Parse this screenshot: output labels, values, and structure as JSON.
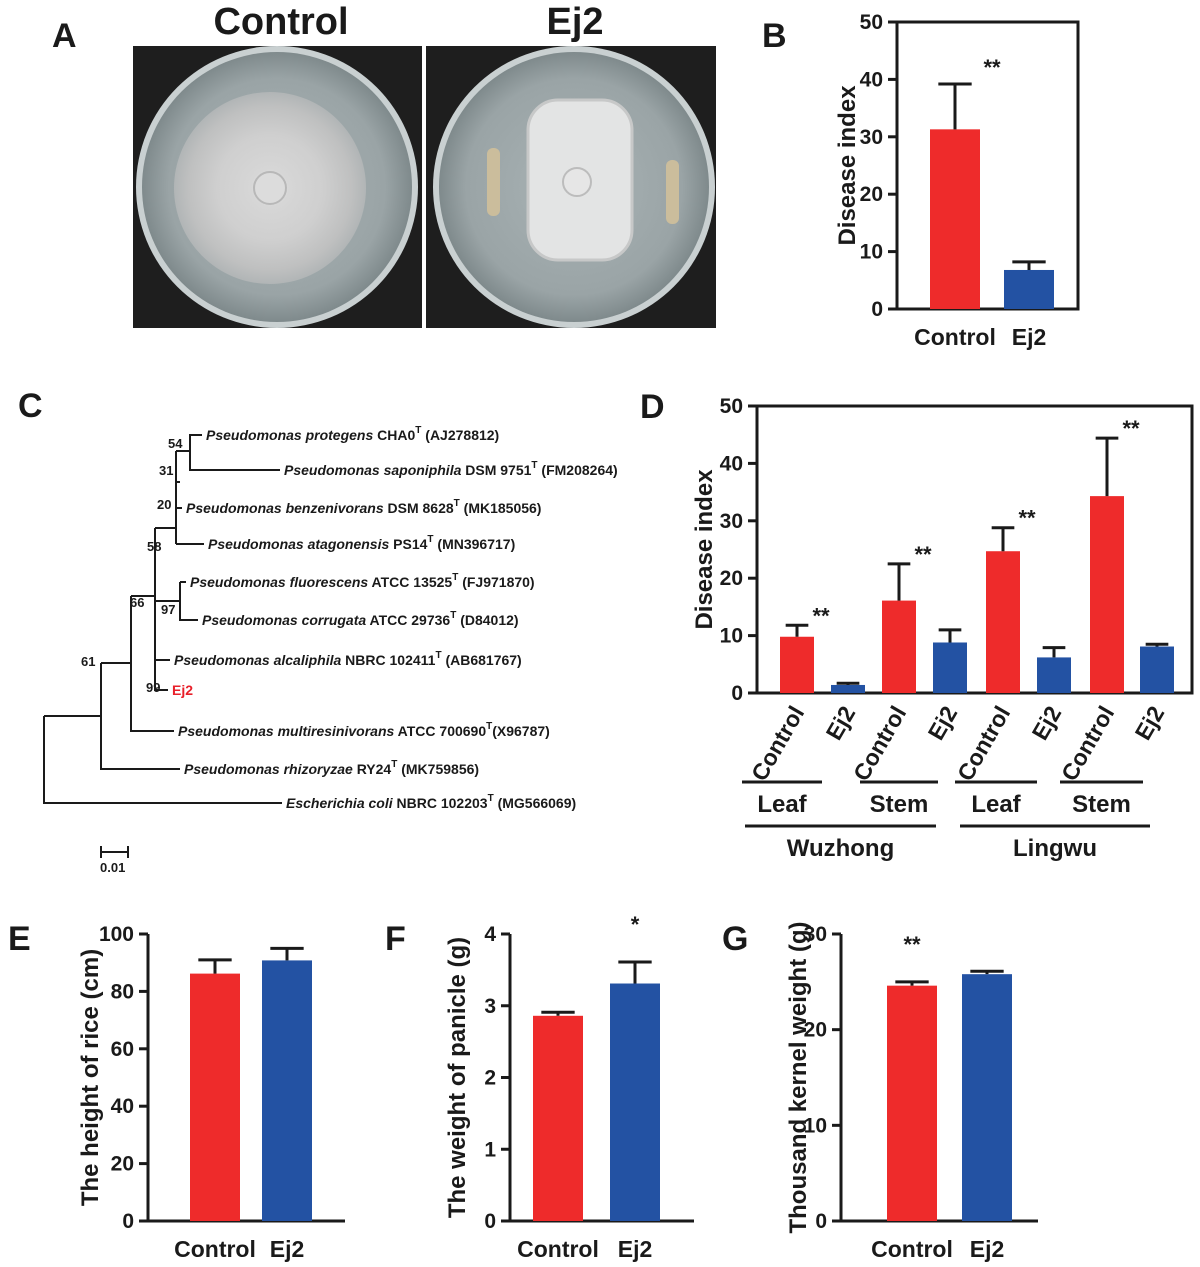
{
  "colors": {
    "control": "#ee2b2b",
    "ej2": "#2352a3",
    "axis": "#1a1a1a",
    "highlight": "#e8202a"
  },
  "panel_letters": {
    "a": "A",
    "b": "B",
    "c": "C",
    "d": "D",
    "e": "E",
    "f": "F",
    "g": "G"
  },
  "photos": {
    "left_title": "Control",
    "right_title": "Ej2"
  },
  "tree": {
    "taxa": [
      {
        "id": "t1",
        "genus_species": "Pseudomonas protegens",
        "strain": "CHA0",
        "accession": "(AJ278812)"
      },
      {
        "id": "t2",
        "genus_species": "Pseudomonas saponiphila",
        "strain": "DSM 9751",
        "accession": "(FM208264)"
      },
      {
        "id": "t3",
        "genus_species": "Pseudomonas benzenivorans",
        "strain": "DSM 8628",
        "accession": "(MK185056)"
      },
      {
        "id": "t4",
        "genus_species": "Pseudomonas atagonensis",
        "strain": "PS14",
        "accession": "(MN396717)"
      },
      {
        "id": "t5",
        "genus_species": "Pseudomonas fluorescens",
        "strain": "ATCC 13525",
        "accession": "(FJ971870)"
      },
      {
        "id": "t6",
        "genus_species": "Pseudomonas corrugata",
        "strain": "ATCC 29736",
        "accession": "(D84012)"
      },
      {
        "id": "t7",
        "genus_species": "Pseudomonas alcaliphila",
        "strain": "NBRC 102411",
        "accession": "(AB681767)"
      },
      {
        "id": "t8",
        "genus_species": "",
        "strain": "Ej2",
        "accession": ""
      },
      {
        "id": "t9",
        "genus_species": "Pseudomonas multiresinivorans",
        "strain": "ATCC 700690",
        "accession": "(X96787)"
      },
      {
        "id": "t10",
        "genus_species": "Pseudomonas rhizoryzae",
        "strain": "RY24",
        "accession": "(MK759856)"
      },
      {
        "id": "t11",
        "genus_species": "Escherichia coli",
        "strain": "NBRC 102203",
        "accession": "(MG566069)"
      }
    ],
    "type_strain_mark": "T",
    "bootstrap_values": [
      "54",
      "31",
      "20",
      "58",
      "97",
      "66",
      "99",
      "61"
    ],
    "scale_bar_label": "0.01"
  },
  "chart_data": [
    {
      "id": "B",
      "type": "bar",
      "categories": [
        "Control",
        "Ej2"
      ],
      "values": [
        31.3,
        6.8
      ],
      "errors": [
        7.9,
        1.4
      ],
      "ylabel": "Disease index",
      "ylim": [
        0,
        50
      ],
      "yticks": [
        "0",
        "10",
        "20",
        "30",
        "40",
        "50"
      ],
      "significance": [
        {
          "category_index": 0,
          "label": "**"
        }
      ],
      "box": true
    },
    {
      "id": "D",
      "type": "bar",
      "categories": [
        "Control",
        "Ej2",
        "Control",
        "Ej2",
        "Control",
        "Ej2",
        "Control",
        "Ej2"
      ],
      "values": [
        9.8,
        1.4,
        16.1,
        8.8,
        24.7,
        6.2,
        34.3,
        8.1
      ],
      "errors": [
        2.0,
        0.3,
        6.4,
        2.2,
        4.1,
        1.7,
        10.1,
        0.4
      ],
      "ylabel": "Disease index",
      "ylim": [
        0,
        50
      ],
      "yticks": [
        "0",
        "10",
        "20",
        "30",
        "40",
        "50"
      ],
      "significance": [
        {
          "category_index": 0,
          "label": "**"
        },
        {
          "category_index": 2,
          "label": "**"
        },
        {
          "category_index": 4,
          "label": "**"
        },
        {
          "category_index": 6,
          "label": "**"
        }
      ],
      "tissue_groups": [
        "Leaf",
        "Stem",
        "Leaf",
        "Stem"
      ],
      "site_groups": [
        "Wuzhong",
        "Lingwu"
      ],
      "box": true
    },
    {
      "id": "E",
      "type": "bar",
      "categories": [
        "Control",
        "Ej2"
      ],
      "values": [
        86.2,
        90.8
      ],
      "errors": [
        4.8,
        4.2
      ],
      "ylabel": "The height of rice (cm)",
      "ylim": [
        0,
        100
      ],
      "yticks": [
        "0",
        "20",
        "40",
        "60",
        "80",
        "100"
      ],
      "significance": [],
      "box": false
    },
    {
      "id": "F",
      "type": "bar",
      "categories": [
        "Control",
        "Ej2"
      ],
      "values": [
        2.86,
        3.31
      ],
      "errors": [
        0.05,
        0.3
      ],
      "ylabel": "The weight of panicle (g)",
      "ylim": [
        0,
        4
      ],
      "yticks": [
        "0",
        "1",
        "2",
        "3",
        "4"
      ],
      "significance": [
        {
          "category_index": 1,
          "label": "*"
        }
      ],
      "box": false
    },
    {
      "id": "G",
      "type": "bar",
      "categories": [
        "Control",
        "Ej2"
      ],
      "values": [
        24.6,
        25.8
      ],
      "errors": [
        0.4,
        0.3
      ],
      "ylabel": "Thousand kernel weight (g)",
      "ylim": [
        0,
        30
      ],
      "yticks": [
        "0",
        "10",
        "20",
        "30"
      ],
      "significance": [
        {
          "category_index": 0,
          "label": "**"
        }
      ],
      "box": false
    }
  ]
}
